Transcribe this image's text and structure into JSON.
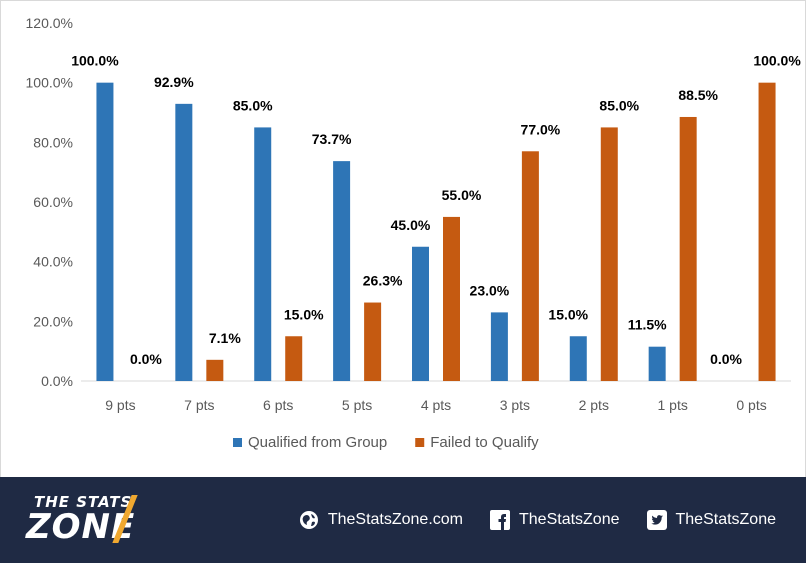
{
  "chart_data": {
    "type": "bar",
    "categories": [
      "9 pts",
      "7 pts",
      "6 pts",
      "5 pts",
      "4 pts",
      "3 pts",
      "2 pts",
      "1 pts",
      "0 pts"
    ],
    "series": [
      {
        "name": "Qualified from Group",
        "color": "#2e75b6",
        "values": [
          100.0,
          92.9,
          85.0,
          73.7,
          45.0,
          23.0,
          15.0,
          11.5,
          0.0
        ],
        "labels": [
          "100.0%",
          "92.9%",
          "85.0%",
          "73.7%",
          "45.0%",
          "23.0%",
          "15.0%",
          "11.5%",
          "0.0%"
        ]
      },
      {
        "name": "Failed to Qualify",
        "color": "#c55a11",
        "values": [
          0.0,
          7.1,
          15.0,
          26.3,
          55.0,
          77.0,
          85.0,
          88.5,
          100.0
        ],
        "labels": [
          "0.0%",
          "7.1%",
          "15.0%",
          "26.3%",
          "55.0%",
          "77.0%",
          "85.0%",
          "88.5%",
          "100.0%"
        ]
      }
    ],
    "ylim": [
      0,
      120
    ],
    "yticks": [
      "0.0%",
      "20.0%",
      "40.0%",
      "60.0%",
      "80.0%",
      "100.0%",
      "120.0%"
    ],
    "grid": false,
    "legend_position": "bottom"
  },
  "footer": {
    "logo_top": "THE STATS",
    "logo_main": "ZONE",
    "links": [
      {
        "icon": "globe-icon",
        "text": "TheStatsZone.com"
      },
      {
        "icon": "facebook-icon",
        "text": "TheStatsZone"
      },
      {
        "icon": "twitter-icon",
        "text": "TheStatsZone"
      }
    ]
  }
}
